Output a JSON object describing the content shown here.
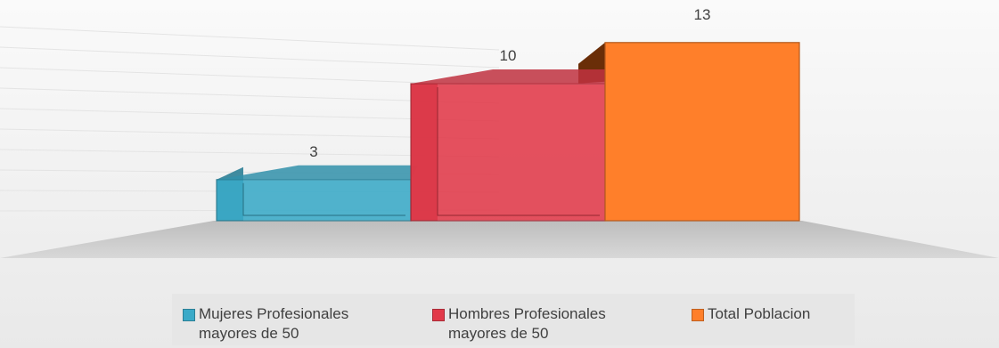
{
  "chart_data": {
    "type": "bar",
    "categories": [
      "Mujeres Profesionales\nmayores de 50",
      "Hombres  Profesionales\nmayores de 50",
      "Total Poblacion"
    ],
    "values": [
      3,
      10,
      13
    ],
    "data_labels": [
      "3",
      "10",
      "13"
    ],
    "colors": [
      "#3aaac8",
      "#e23a4a",
      "#ff7f2a"
    ],
    "title": "",
    "xlabel": "",
    "ylabel": "",
    "ylim": [
      0,
      14
    ],
    "grid": true,
    "legend_position": "bottom",
    "style": "3d-column"
  },
  "legend": {
    "items": [
      {
        "label": "Mujeres Profesionales\nmayores de 50",
        "color": "#3aaac8"
      },
      {
        "label": "Hombres  Profesionales\nmayores de 50",
        "color": "#e23a4a"
      },
      {
        "label": "Total Poblacion",
        "color": "#ff7f2a"
      }
    ]
  }
}
